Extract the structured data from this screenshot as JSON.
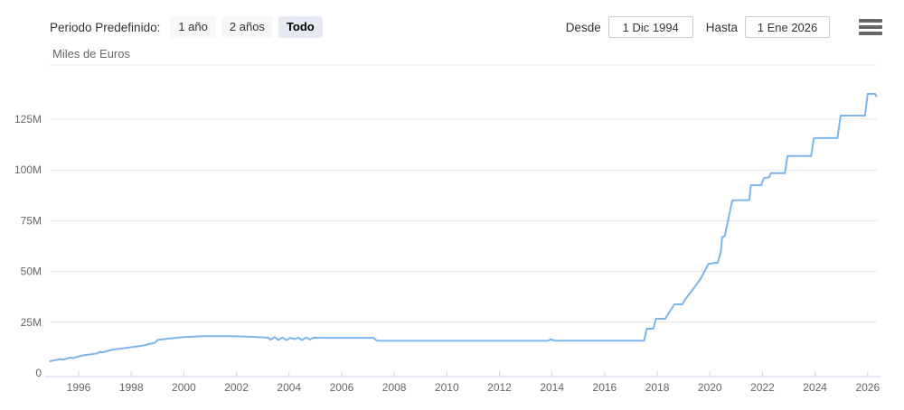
{
  "header": {
    "period_label": "Periodo Predefinido:",
    "period_buttons": [
      {
        "label": "1 año",
        "selected": false
      },
      {
        "label": "2 años",
        "selected": false
      },
      {
        "label": "Todo",
        "selected": true
      }
    ],
    "from_label": "Desde",
    "from_value": "1 Dic 1994",
    "to_label": "Hasta",
    "to_value": "1 Ene 2026",
    "menu_icon": "hamburger"
  },
  "chart_data": {
    "type": "line",
    "title": "Miles de Euros",
    "ylabel": "Miles de Euros",
    "xlabel": "",
    "legend": "none",
    "grid": true,
    "line_color": "#7cb5ec",
    "grid_color": "#e6e6e6",
    "axis_line_color": "#ccd6eb",
    "label_color": "#666666",
    "xlim": [
      1994.9,
      2026.35
    ],
    "ylim": [
      0,
      151.7
    ],
    "x_ticks": [
      1996,
      1998,
      2000,
      2002,
      2004,
      2006,
      2008,
      2010,
      2012,
      2014,
      2016,
      2018,
      2020,
      2022,
      2024,
      2026
    ],
    "y_ticks": [
      {
        "value": 0,
        "label": "0"
      },
      {
        "value": 25,
        "label": "25M"
      },
      {
        "value": 50,
        "label": "50M"
      },
      {
        "value": 75,
        "label": "75M"
      },
      {
        "value": 100,
        "label": "100M"
      },
      {
        "value": 125,
        "label": "125M"
      }
    ],
    "points": [
      [
        1994.92,
        5.8
      ],
      [
        1995.1,
        6.3
      ],
      [
        1995.35,
        6.9
      ],
      [
        1995.42,
        6.6
      ],
      [
        1995.7,
        7.6
      ],
      [
        1995.78,
        7.3
      ],
      [
        1996.1,
        8.5
      ],
      [
        1996.5,
        9.3
      ],
      [
        1996.72,
        9.7
      ],
      [
        1996.8,
        10.5
      ],
      [
        1996.9,
        10.2
      ],
      [
        1997.3,
        11.5
      ],
      [
        1997.9,
        12.5
      ],
      [
        1998.4,
        13.4
      ],
      [
        1998.9,
        14.9
      ],
      [
        1999.0,
        16.3
      ],
      [
        1999.4,
        16.9
      ],
      [
        2000.0,
        17.7
      ],
      [
        2000.7,
        18.1
      ],
      [
        2001.8,
        18.1
      ],
      [
        2002.6,
        17.8
      ],
      [
        2003.2,
        17.4
      ],
      [
        2003.3,
        16.4
      ],
      [
        2003.45,
        17.7
      ],
      [
        2003.6,
        16.3
      ],
      [
        2003.75,
        17.5
      ],
      [
        2003.9,
        16.2
      ],
      [
        2004.05,
        17.3
      ],
      [
        2004.2,
        16.7
      ],
      [
        2004.35,
        17.4
      ],
      [
        2004.5,
        16.2
      ],
      [
        2004.65,
        17.5
      ],
      [
        2004.8,
        16.5
      ],
      [
        2004.95,
        17.4
      ],
      [
        2005.3,
        17.3
      ],
      [
        2006.5,
        17.3
      ],
      [
        2007.2,
        17.3
      ],
      [
        2007.35,
        15.9
      ],
      [
        2009.0,
        15.85
      ],
      [
        2011.0,
        15.85
      ],
      [
        2013.0,
        15.85
      ],
      [
        2013.85,
        15.85
      ],
      [
        2013.95,
        16.6
      ],
      [
        2014.1,
        15.9
      ],
      [
        2015.5,
        15.9
      ],
      [
        2017.5,
        15.9
      ],
      [
        2017.6,
        21.8
      ],
      [
        2017.85,
        21.8
      ],
      [
        2017.95,
        26.7
      ],
      [
        2018.3,
        26.7
      ],
      [
        2018.65,
        33.8
      ],
      [
        2018.95,
        33.8
      ],
      [
        2019.05,
        36.0
      ],
      [
        2019.4,
        42.0
      ],
      [
        2019.65,
        46.5
      ],
      [
        2019.95,
        53.8
      ],
      [
        2020.3,
        54.3
      ],
      [
        2020.42,
        60.0
      ],
      [
        2020.47,
        67.0
      ],
      [
        2020.57,
        67.5
      ],
      [
        2020.85,
        85.0
      ],
      [
        2021.5,
        85.2
      ],
      [
        2021.56,
        92.5
      ],
      [
        2021.95,
        92.5
      ],
      [
        2022.05,
        96.0
      ],
      [
        2022.25,
        96.3
      ],
      [
        2022.32,
        98.4
      ],
      [
        2022.85,
        98.4
      ],
      [
        2022.95,
        106.9
      ],
      [
        2023.85,
        106.9
      ],
      [
        2023.95,
        115.7
      ],
      [
        2024.85,
        115.7
      ],
      [
        2024.97,
        126.8
      ],
      [
        2025.9,
        126.8
      ],
      [
        2026.0,
        137.5
      ],
      [
        2026.28,
        137.5
      ],
      [
        2026.33,
        136.3
      ]
    ]
  }
}
